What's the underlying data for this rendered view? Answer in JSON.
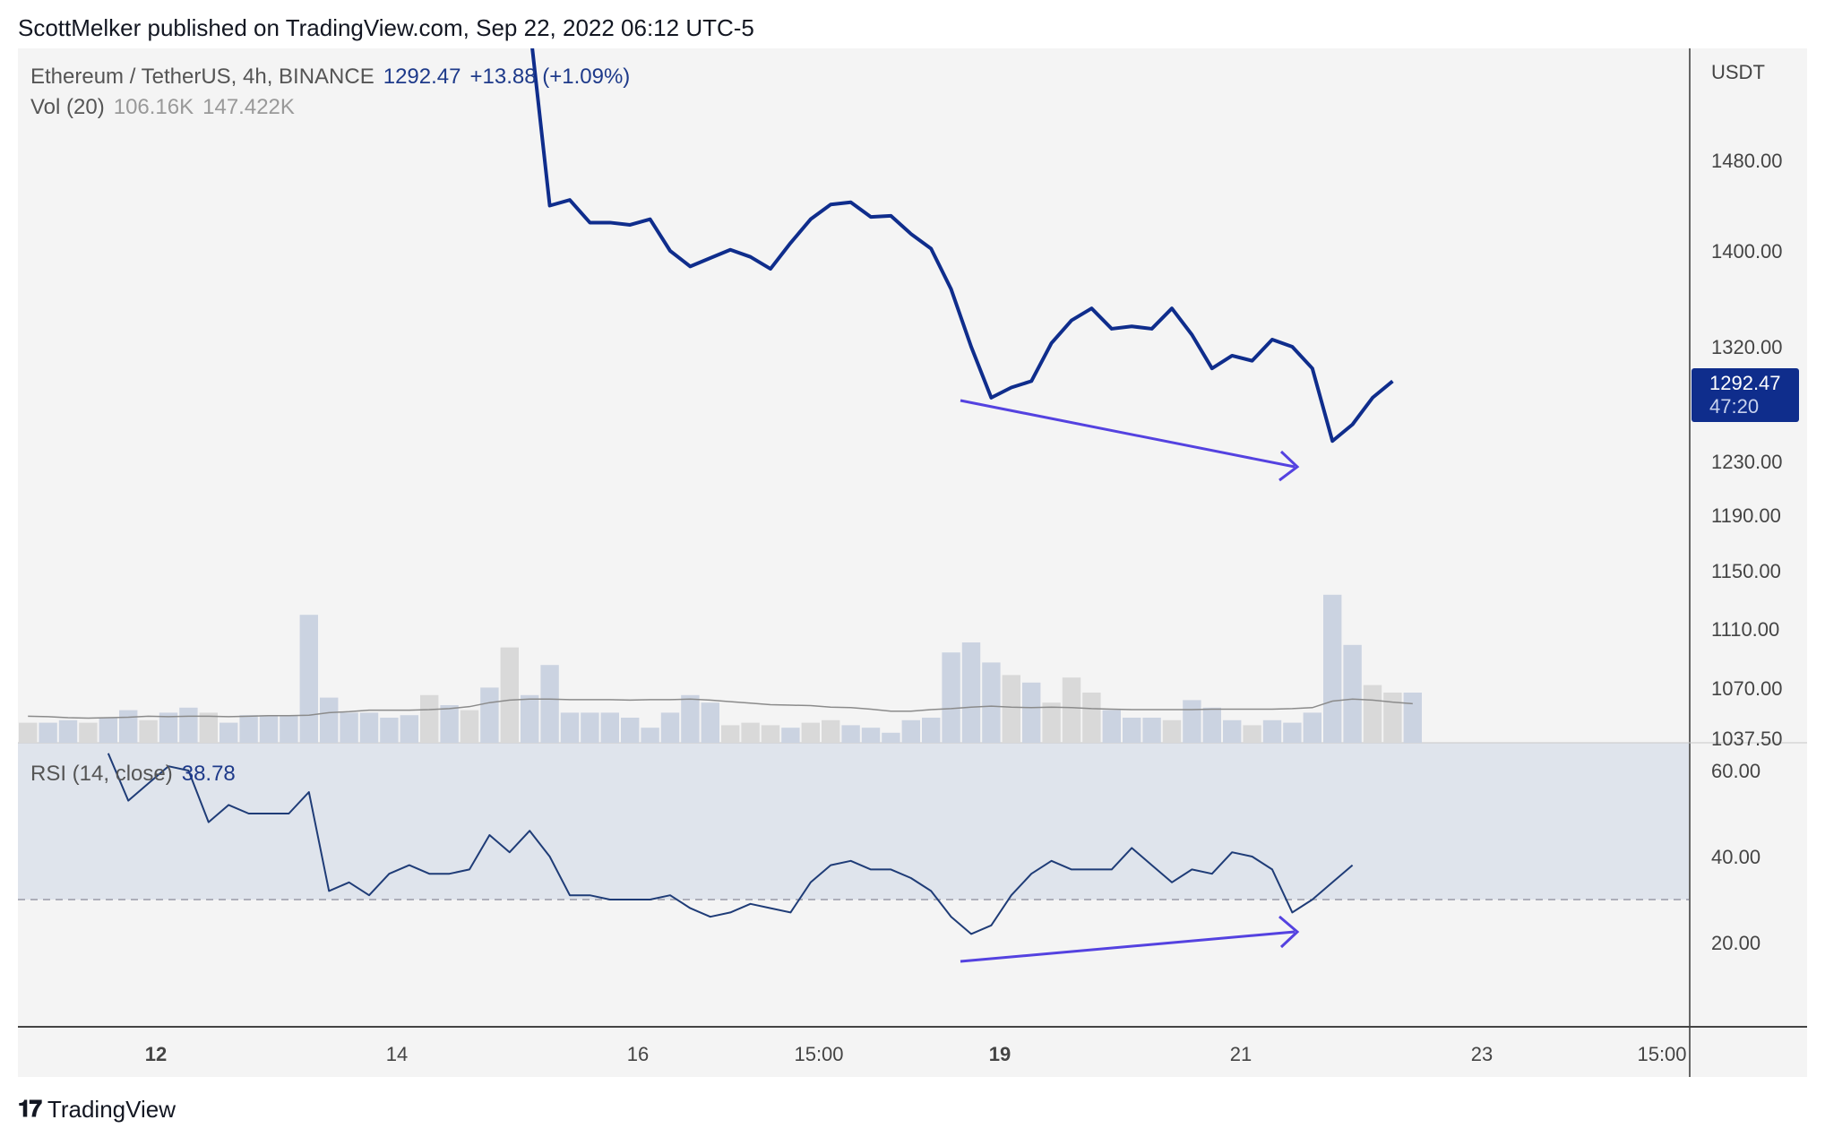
{
  "header": {
    "publish_line": "ScottMelker published on TradingView.com, Sep 22, 2022 06:12 UTC-5"
  },
  "legend": {
    "symbol": "Ethereum / TetherUS, 4h, BINANCE",
    "price": "1292.47",
    "change": "+13.88 (+1.09%)",
    "vol_label": "Vol (20)",
    "vol_a": "106.16K",
    "vol_b": "147.422K",
    "rsi_label": "RSI (14, close)",
    "rsi_value": "38.78"
  },
  "axis": {
    "currency": "USDT",
    "price_ticks": [
      "1480.00",
      "1400.00",
      "1320.00",
      "1230.00",
      "1190.00",
      "1150.00",
      "1110.00",
      "1070.00",
      "1037.50"
    ],
    "rsi_ticks": [
      "60.00",
      "40.00",
      "20.00"
    ],
    "time_ticks": [
      "12",
      "14",
      "16",
      "15:00",
      "19",
      "21",
      "23",
      "15:00"
    ],
    "last_price_badge": "1292.47",
    "countdown": "47:20"
  },
  "logo": {
    "text": "TradingView"
  },
  "colors": {
    "price_line": "#0f2d8c",
    "rsi_line": "#1f3c77",
    "arrow": "#5442e0",
    "rsi_band": "#dfe4ec",
    "vol_up": "#cbd3e1",
    "vol_down": "#d9d9d9",
    "badge": "#0f2d8c"
  },
  "chart_data": {
    "type": "line",
    "price": [
      1600,
      1440,
      1445,
      1425,
      1425,
      1423,
      1428,
      1400,
      1387,
      1394,
      1401,
      1395,
      1385,
      1407,
      1428,
      1441,
      1443,
      1430,
      1431,
      1415,
      1402,
      1368,
      1320,
      1280,
      1288,
      1293,
      1323,
      1342,
      1352,
      1335,
      1337,
      1335,
      1352,
      1330,
      1303,
      1313,
      1309,
      1326,
      1320,
      1303,
      1246,
      1259,
      1280,
      1293
    ],
    "price_start_index": 25,
    "volume": [
      4,
      4,
      4.5,
      4,
      5,
      6.5,
      4.5,
      6,
      7,
      6,
      4,
      5.5,
      5.5,
      5.5,
      25.5,
      9,
      6,
      6,
      5,
      5.5,
      9.5,
      7.5,
      6.5,
      11,
      19,
      9.5,
      15.5,
      6,
      6,
      6,
      5,
      3,
      6,
      9.5,
      8,
      3.5,
      4,
      3.5,
      3,
      4,
      4.5,
      3.5,
      3,
      2,
      4.5,
      5,
      18,
      20,
      16,
      13.5,
      12,
      8,
      13,
      10,
      6.5,
      5,
      5,
      4.5,
      8.5,
      7,
      4.5,
      3.5,
      4.5,
      4,
      6,
      29.5,
      19.5,
      11.5,
      10,
      10
    ],
    "volume_up": [
      false,
      true,
      true,
      false,
      true,
      true,
      false,
      true,
      true,
      false,
      true,
      true,
      true,
      true,
      true,
      true,
      true,
      true,
      true,
      true,
      false,
      true,
      false,
      true,
      false,
      true,
      true,
      true,
      true,
      true,
      true,
      true,
      true,
      true,
      true,
      false,
      false,
      false,
      true,
      false,
      false,
      true,
      true,
      true,
      true,
      true,
      true,
      true,
      true,
      false,
      true,
      false,
      false,
      false,
      true,
      true,
      true,
      false,
      true,
      true,
      true,
      false,
      true,
      true,
      true,
      true,
      true,
      false,
      false,
      true
    ],
    "volume_ma": [
      5.3,
      5.2,
      5.0,
      4.9,
      5.0,
      5.1,
      5.3,
      5.2,
      5.3,
      5.3,
      5.2,
      5.3,
      5.4,
      5.4,
      5.5,
      6.0,
      6.2,
      6.5,
      6.5,
      6.5,
      6.6,
      6.8,
      7.2,
      8.0,
      8.5,
      8.7,
      8.7,
      8.6,
      8.6,
      8.6,
      8.5,
      8.6,
      8.6,
      8.7,
      8.5,
      8.2,
      7.9,
      7.6,
      7.5,
      7.4,
      7.1,
      7.0,
      6.7,
      6.3,
      6.3,
      6.6,
      6.8,
      7.1,
      7.3,
      7.1,
      7.0,
      7.1,
      7.0,
      6.8,
      6.7,
      6.6,
      6.6,
      6.6,
      6.6,
      6.7,
      6.7,
      6.7,
      6.7,
      6.8,
      7.0,
      8.3,
      8.7,
      8.5,
      8.1,
      7.8
    ],
    "rsi": [
      64,
      53,
      57,
      61,
      60,
      48,
      52,
      50,
      50,
      50,
      55,
      32,
      34,
      31,
      36,
      38,
      36,
      36,
      37,
      45,
      41,
      46,
      40,
      31,
      31,
      30,
      30,
      30,
      31,
      28,
      26,
      27,
      29,
      28,
      27,
      34,
      38,
      39,
      37,
      37,
      35,
      32,
      26,
      22,
      24,
      31,
      36,
      39,
      37,
      37,
      37,
      42,
      38,
      34,
      37,
      36,
      41,
      40,
      37,
      27,
      30,
      34,
      38
    ],
    "rsi_start_index": 4,
    "price_axis_label": "USDT",
    "rsi_band": [
      30,
      70
    ]
  }
}
